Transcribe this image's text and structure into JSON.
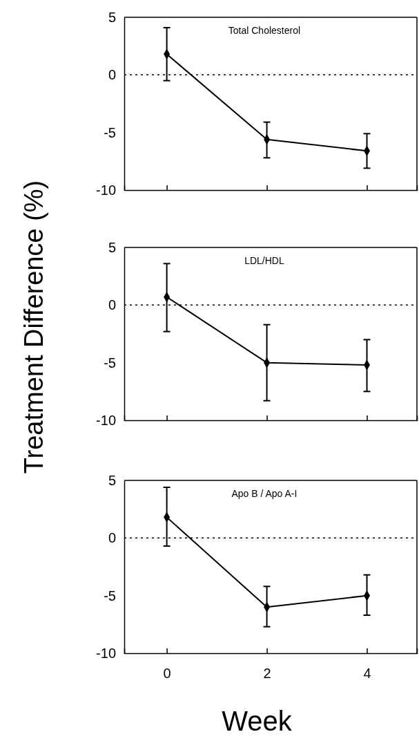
{
  "chart_data": [
    {
      "type": "line",
      "title": "Total Cholesterol",
      "x": [
        0,
        2,
        4
      ],
      "xlim": [
        -0.85,
        5
      ],
      "xticks": [
        {
          "value": 0,
          "label": null
        },
        {
          "value": 2,
          "label": null
        },
        {
          "value": 4,
          "label": null
        }
      ],
      "ylim": [
        -10,
        5
      ],
      "yticks": [
        -10,
        -5,
        0,
        5
      ],
      "tick_labels": "y",
      "marker": "diamond",
      "line_style": "solid",
      "series": [
        {
          "color": "#000000",
          "values": [
            1.8,
            -5.6,
            -6.6
          ],
          "errors": [
            [
              -0.5,
              4.1
            ],
            [
              -7.2,
              -4.1
            ],
            [
              -8.1,
              -5.1
            ]
          ]
        }
      ],
      "ref_lines": [
        {
          "axis": "y",
          "value": 0,
          "line_style": "dotted",
          "color": "#000000"
        }
      ]
    },
    {
      "type": "line",
      "title": "LDL/HDL",
      "ylabel": "Treatment Difference (%)",
      "x": [
        0,
        2,
        4
      ],
      "xlim": [
        -0.85,
        5
      ],
      "xticks": [
        {
          "value": 0,
          "label": null
        },
        {
          "value": 2,
          "label": null
        },
        {
          "value": 4,
          "label": null
        }
      ],
      "ylim": [
        -10,
        5
      ],
      "yticks": [
        -10,
        -5,
        0,
        5
      ],
      "tick_labels": "y",
      "marker": "diamond",
      "line_style": "solid",
      "series": [
        {
          "color": "#000000",
          "values": [
            0.7,
            -5.0,
            -5.2
          ],
          "errors": [
            [
              -2.3,
              3.6
            ],
            [
              -8.3,
              -1.7
            ],
            [
              -7.5,
              -3.0
            ]
          ]
        }
      ],
      "ref_lines": [
        {
          "axis": "y",
          "value": 0,
          "line_style": "dotted",
          "color": "#000000"
        }
      ]
    },
    {
      "type": "line",
      "title": "Apo B / Apo A-I",
      "xlabel": "Week",
      "x": [
        0,
        2,
        4
      ],
      "xlim": [
        -0.85,
        5
      ],
      "xticks": [
        0,
        2,
        4
      ],
      "ylim": [
        -10,
        5
      ],
      "yticks": [
        -10,
        -5,
        0,
        5
      ],
      "marker": "diamond",
      "line_style": "solid",
      "series": [
        {
          "color": "#000000",
          "values": [
            1.8,
            -6.0,
            -5.0
          ],
          "errors": [
            [
              -0.7,
              4.4
            ],
            [
              -7.7,
              -4.2
            ],
            [
              -6.7,
              -3.2
            ]
          ]
        }
      ],
      "ref_lines": [
        {
          "axis": "y",
          "value": 0,
          "line_style": "dotted",
          "color": "#000000"
        }
      ]
    }
  ]
}
